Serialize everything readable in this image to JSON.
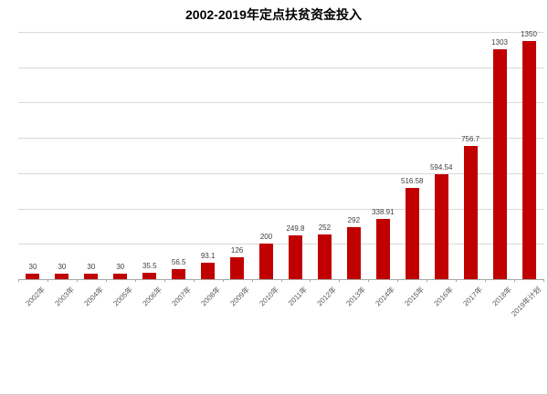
{
  "chart_data": {
    "type": "bar",
    "title": "2002-2019年定点扶贫资金投入",
    "categories": [
      "2002年",
      "2003年",
      "2004年",
      "2005年",
      "2006年",
      "2007年",
      "2008年",
      "2009年",
      "2010年",
      "2011年",
      "2012年",
      "2013年",
      "2014年",
      "2015年",
      "2016年",
      "2017年",
      "2018年",
      "2019年计划"
    ],
    "values": [
      30,
      30,
      30,
      30,
      35.5,
      56.5,
      93.1,
      126,
      200,
      249.8,
      252,
      292,
      338.91,
      516.58,
      594.54,
      756.7,
      1303,
      1350
    ],
    "value_labels": [
      "30",
      "30",
      "30",
      "30",
      "35.5",
      "56.5",
      "93.1",
      "126",
      "200",
      "249.8",
      "252",
      "292",
      "338.91",
      "516.58",
      "594.54",
      "756.7",
      "1303",
      "1350"
    ],
    "xlabel": "",
    "ylabel": "",
    "ylim": [
      0,
      1400
    ],
    "gridline_step": 200,
    "grid": true,
    "legend": false,
    "colors": {
      "bar": "#c00000",
      "gridline": "#d9d9d9",
      "axis": "#a6a6a6",
      "value_label": "#404040",
      "tick_label": "#595959",
      "title": "#000000",
      "frame_border": "#c9c9c9",
      "background": "#ffffff"
    }
  }
}
